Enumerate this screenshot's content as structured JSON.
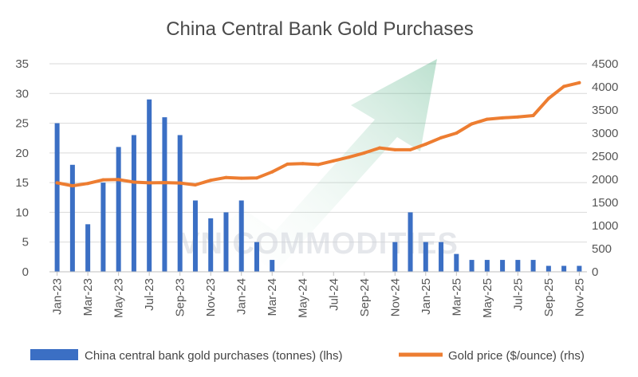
{
  "chart_data": {
    "type": "bar",
    "title": "China Central Bank Gold Purchases",
    "watermark": "VN COMMODITIES",
    "categories": [
      "Jan-23",
      "Feb-23",
      "Mar-23",
      "Apr-23",
      "May-23",
      "Jun-23",
      "Jul-23",
      "Aug-23",
      "Sep-23",
      "Oct-23",
      "Nov-23",
      "Dec-23",
      "Jan-24",
      "Feb-24",
      "Mar-24",
      "Apr-24",
      "May-24",
      "Jun-24",
      "Jul-24",
      "Aug-24",
      "Sep-24",
      "Oct-24",
      "Nov-24",
      "Dec-24",
      "Jan-25",
      "Feb-25",
      "Mar-25",
      "Apr-25",
      "May-25",
      "Jun-25",
      "Jul-25",
      "Aug-25",
      "Sep-25",
      "Oct-25",
      "Nov-25"
    ],
    "x_tick_labels": [
      "Jan-23",
      "Mar-23",
      "May-23",
      "Jul-23",
      "Sep-23",
      "Nov-23",
      "Jan-24",
      "Mar-24",
      "May-24",
      "Jul-24",
      "Sep-24",
      "Nov-24",
      "Jan-25",
      "Mar-25",
      "May-25",
      "Jul-25",
      "Sep-25",
      "Nov-25"
    ],
    "series": [
      {
        "name": "China central bank gold purchases (tonnes) (lhs)",
        "type": "bar",
        "axis": "left",
        "color": "#3b6fc4",
        "values": [
          25,
          18,
          8,
          15,
          21,
          23,
          29,
          26,
          23,
          12,
          9,
          10,
          12,
          5,
          2,
          0,
          0,
          0,
          0,
          0,
          0,
          0,
          5,
          10,
          5,
          5,
          3,
          2,
          2,
          2,
          2,
          2,
          1,
          1,
          1
        ]
      },
      {
        "name": "Gold price ($/ounce) (rhs)",
        "type": "line",
        "axis": "right",
        "color": "#ed7d31",
        "values": [
          1925,
          1860,
          1910,
          1990,
          1995,
          1940,
          1925,
          1930,
          1920,
          1880,
          1980,
          2040,
          2025,
          2030,
          2160,
          2330,
          2340,
          2320,
          2400,
          2480,
          2570,
          2680,
          2640,
          2640,
          2760,
          2900,
          3000,
          3200,
          3300,
          3330,
          3350,
          3380,
          3750,
          4010,
          4090
        ]
      }
    ],
    "y_left": {
      "min": 0,
      "max": 35,
      "ticks": [
        0,
        5,
        10,
        15,
        20,
        25,
        30,
        35
      ]
    },
    "y_right": {
      "min": 0,
      "max": 4500,
      "ticks": [
        0,
        500,
        1000,
        1500,
        2000,
        2500,
        3000,
        3500,
        4000,
        4500
      ]
    },
    "grid": true,
    "legend_position": "bottom"
  }
}
